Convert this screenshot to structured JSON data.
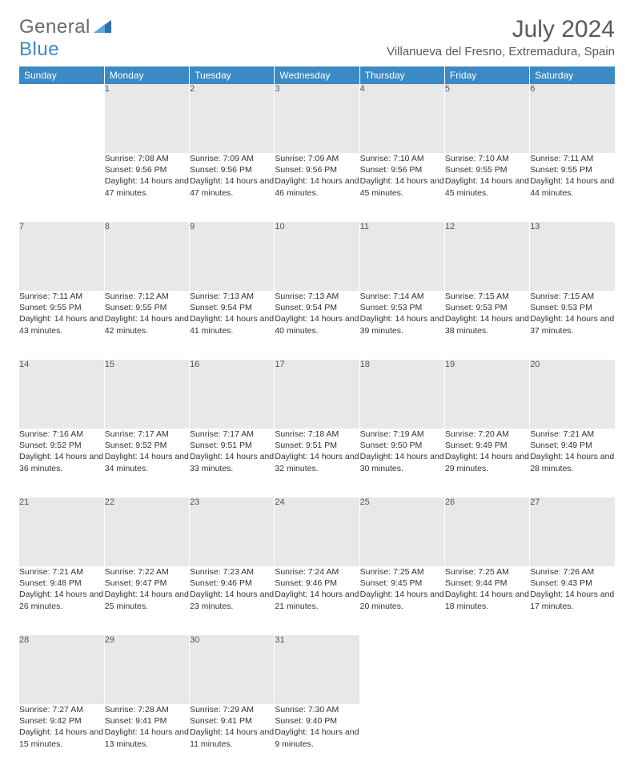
{
  "logo": {
    "word1": "General",
    "word2": "Blue"
  },
  "title": "July 2024",
  "location": "Villanueva del Fresno, Extremadura, Spain",
  "colors": {
    "header_bg": "#3b8ac4",
    "header_text": "#ffffff",
    "daynum_bg": "#e8e8e8",
    "text": "#333333",
    "logo_gray": "#6a6a6a",
    "logo_blue": "#3b8ac4"
  },
  "weekdays": [
    "Sunday",
    "Monday",
    "Tuesday",
    "Wednesday",
    "Thursday",
    "Friday",
    "Saturday"
  ],
  "weeks": [
    [
      null,
      {
        "n": "1",
        "sr": "Sunrise: 7:08 AM",
        "ss": "Sunset: 9:56 PM",
        "dl": "Daylight: 14 hours and 47 minutes."
      },
      {
        "n": "2",
        "sr": "Sunrise: 7:09 AM",
        "ss": "Sunset: 9:56 PM",
        "dl": "Daylight: 14 hours and 47 minutes."
      },
      {
        "n": "3",
        "sr": "Sunrise: 7:09 AM",
        "ss": "Sunset: 9:56 PM",
        "dl": "Daylight: 14 hours and 46 minutes."
      },
      {
        "n": "4",
        "sr": "Sunrise: 7:10 AM",
        "ss": "Sunset: 9:56 PM",
        "dl": "Daylight: 14 hours and 45 minutes."
      },
      {
        "n": "5",
        "sr": "Sunrise: 7:10 AM",
        "ss": "Sunset: 9:55 PM",
        "dl": "Daylight: 14 hours and 45 minutes."
      },
      {
        "n": "6",
        "sr": "Sunrise: 7:11 AM",
        "ss": "Sunset: 9:55 PM",
        "dl": "Daylight: 14 hours and 44 minutes."
      }
    ],
    [
      {
        "n": "7",
        "sr": "Sunrise: 7:11 AM",
        "ss": "Sunset: 9:55 PM",
        "dl": "Daylight: 14 hours and 43 minutes."
      },
      {
        "n": "8",
        "sr": "Sunrise: 7:12 AM",
        "ss": "Sunset: 9:55 PM",
        "dl": "Daylight: 14 hours and 42 minutes."
      },
      {
        "n": "9",
        "sr": "Sunrise: 7:13 AM",
        "ss": "Sunset: 9:54 PM",
        "dl": "Daylight: 14 hours and 41 minutes."
      },
      {
        "n": "10",
        "sr": "Sunrise: 7:13 AM",
        "ss": "Sunset: 9:54 PM",
        "dl": "Daylight: 14 hours and 40 minutes."
      },
      {
        "n": "11",
        "sr": "Sunrise: 7:14 AM",
        "ss": "Sunset: 9:53 PM",
        "dl": "Daylight: 14 hours and 39 minutes."
      },
      {
        "n": "12",
        "sr": "Sunrise: 7:15 AM",
        "ss": "Sunset: 9:53 PM",
        "dl": "Daylight: 14 hours and 38 minutes."
      },
      {
        "n": "13",
        "sr": "Sunrise: 7:15 AM",
        "ss": "Sunset: 9:53 PM",
        "dl": "Daylight: 14 hours and 37 minutes."
      }
    ],
    [
      {
        "n": "14",
        "sr": "Sunrise: 7:16 AM",
        "ss": "Sunset: 9:52 PM",
        "dl": "Daylight: 14 hours and 36 minutes."
      },
      {
        "n": "15",
        "sr": "Sunrise: 7:17 AM",
        "ss": "Sunset: 9:52 PM",
        "dl": "Daylight: 14 hours and 34 minutes."
      },
      {
        "n": "16",
        "sr": "Sunrise: 7:17 AM",
        "ss": "Sunset: 9:51 PM",
        "dl": "Daylight: 14 hours and 33 minutes."
      },
      {
        "n": "17",
        "sr": "Sunrise: 7:18 AM",
        "ss": "Sunset: 9:51 PM",
        "dl": "Daylight: 14 hours and 32 minutes."
      },
      {
        "n": "18",
        "sr": "Sunrise: 7:19 AM",
        "ss": "Sunset: 9:50 PM",
        "dl": "Daylight: 14 hours and 30 minutes."
      },
      {
        "n": "19",
        "sr": "Sunrise: 7:20 AM",
        "ss": "Sunset: 9:49 PM",
        "dl": "Daylight: 14 hours and 29 minutes."
      },
      {
        "n": "20",
        "sr": "Sunrise: 7:21 AM",
        "ss": "Sunset: 9:49 PM",
        "dl": "Daylight: 14 hours and 28 minutes."
      }
    ],
    [
      {
        "n": "21",
        "sr": "Sunrise: 7:21 AM",
        "ss": "Sunset: 9:48 PM",
        "dl": "Daylight: 14 hours and 26 minutes."
      },
      {
        "n": "22",
        "sr": "Sunrise: 7:22 AM",
        "ss": "Sunset: 9:47 PM",
        "dl": "Daylight: 14 hours and 25 minutes."
      },
      {
        "n": "23",
        "sr": "Sunrise: 7:23 AM",
        "ss": "Sunset: 9:46 PM",
        "dl": "Daylight: 14 hours and 23 minutes."
      },
      {
        "n": "24",
        "sr": "Sunrise: 7:24 AM",
        "ss": "Sunset: 9:46 PM",
        "dl": "Daylight: 14 hours and 21 minutes."
      },
      {
        "n": "25",
        "sr": "Sunrise: 7:25 AM",
        "ss": "Sunset: 9:45 PM",
        "dl": "Daylight: 14 hours and 20 minutes."
      },
      {
        "n": "26",
        "sr": "Sunrise: 7:25 AM",
        "ss": "Sunset: 9:44 PM",
        "dl": "Daylight: 14 hours and 18 minutes."
      },
      {
        "n": "27",
        "sr": "Sunrise: 7:26 AM",
        "ss": "Sunset: 9:43 PM",
        "dl": "Daylight: 14 hours and 17 minutes."
      }
    ],
    [
      {
        "n": "28",
        "sr": "Sunrise: 7:27 AM",
        "ss": "Sunset: 9:42 PM",
        "dl": "Daylight: 14 hours and 15 minutes."
      },
      {
        "n": "29",
        "sr": "Sunrise: 7:28 AM",
        "ss": "Sunset: 9:41 PM",
        "dl": "Daylight: 14 hours and 13 minutes."
      },
      {
        "n": "30",
        "sr": "Sunrise: 7:29 AM",
        "ss": "Sunset: 9:41 PM",
        "dl": "Daylight: 14 hours and 11 minutes."
      },
      {
        "n": "31",
        "sr": "Sunrise: 7:30 AM",
        "ss": "Sunset: 9:40 PM",
        "dl": "Daylight: 14 hours and 9 minutes."
      },
      null,
      null,
      null
    ]
  ]
}
